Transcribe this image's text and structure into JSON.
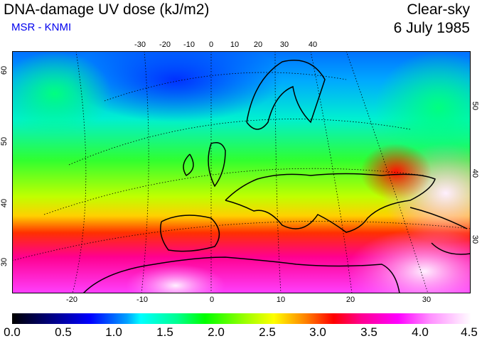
{
  "header": {
    "title": "DNA-damage UV dose (kJ/m2)",
    "source": "MSR - KNMI",
    "condition": "Clear-sky",
    "date": "6 July 1985"
  },
  "axes": {
    "top_lon": [
      "-30",
      "-20",
      "-10",
      "0",
      "10",
      "20",
      "30",
      "40"
    ],
    "bottom_lon": [
      "-20",
      "-10",
      "0",
      "10",
      "20",
      "30"
    ],
    "left_lat": [
      "60",
      "50",
      "40",
      "30"
    ],
    "right_lat": [
      "50",
      "40",
      "30"
    ]
  },
  "colorbar": {
    "labels": [
      "0.0",
      "0.5",
      "1.0",
      "1.5",
      "2.0",
      "2.5",
      "3.0",
      "3.5",
      "4.0",
      "4.5"
    ],
    "min": 0.0,
    "max": 4.5,
    "unit": "kJ/m2"
  }
}
